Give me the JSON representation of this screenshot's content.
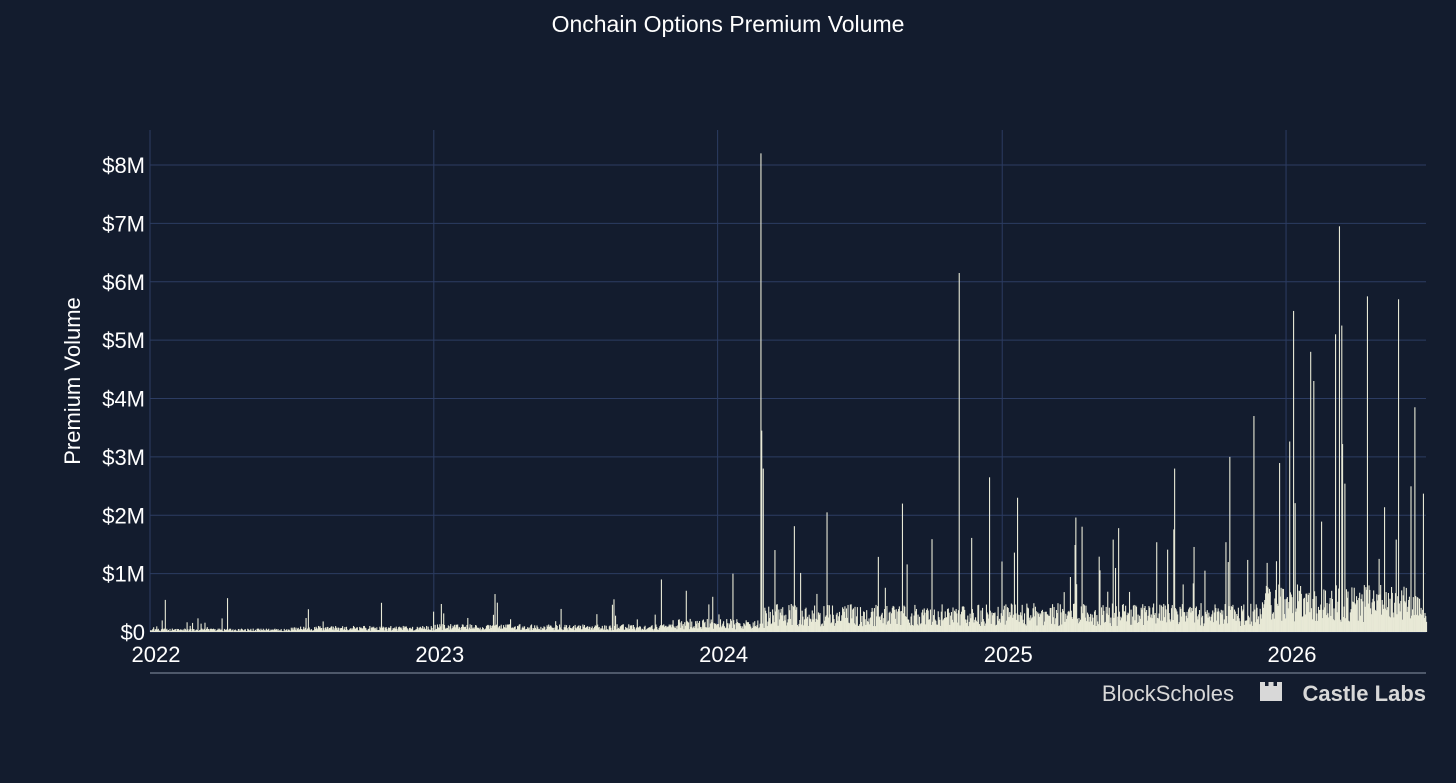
{
  "chart_data": {
    "type": "bar",
    "title": "Onchain Options Premium Volume",
    "xlabel": "",
    "ylabel": "Premium Volume",
    "y_ticks": [
      "$0",
      "$1M",
      "$2M",
      "$3M",
      "$4M",
      "$5M",
      "$6M",
      "$7M",
      "$8M"
    ],
    "x_ticks": [
      "2022",
      "2023",
      "2024",
      "2025",
      "2026"
    ],
    "xlim": [
      "2022-01-01",
      "2026-06-30"
    ],
    "ylim": [
      0,
      8600000
    ],
    "grid": true,
    "colors": {
      "background": "#131c2e",
      "bar": "#e8e9d6",
      "grid": "#2c3c62",
      "axis_line": "#8a93a6"
    },
    "notable_peaks": [
      {
        "date": "2022-01-20",
        "value": 550000
      },
      {
        "date": "2022-04-10",
        "value": 580000
      },
      {
        "date": "2022-10-25",
        "value": 500000
      },
      {
        "date": "2023-01-10",
        "value": 480000
      },
      {
        "date": "2023-03-20",
        "value": 650000
      },
      {
        "date": "2023-08-20",
        "value": 560000
      },
      {
        "date": "2023-10-20",
        "value": 900000
      },
      {
        "date": "2024-01-20",
        "value": 1000000
      },
      {
        "date": "2024-02-25",
        "value": 8200000
      },
      {
        "date": "2024-02-26",
        "value": 3450000
      },
      {
        "date": "2024-02-28",
        "value": 2800000
      },
      {
        "date": "2024-05-20",
        "value": 2050000
      },
      {
        "date": "2024-08-25",
        "value": 2200000
      },
      {
        "date": "2024-11-06",
        "value": 6150000
      },
      {
        "date": "2024-12-15",
        "value": 2650000
      },
      {
        "date": "2025-01-20",
        "value": 2300000
      },
      {
        "date": "2025-08-10",
        "value": 2800000
      },
      {
        "date": "2025-10-20",
        "value": 3000000
      },
      {
        "date": "2025-11-20",
        "value": 3700000
      },
      {
        "date": "2026-01-10",
        "value": 5500000
      },
      {
        "date": "2026-02-01",
        "value": 4800000
      },
      {
        "date": "2026-02-05",
        "value": 4300000
      },
      {
        "date": "2026-03-05",
        "value": 5100000
      },
      {
        "date": "2026-03-10",
        "value": 6950000
      },
      {
        "date": "2026-03-13",
        "value": 5250000
      },
      {
        "date": "2026-04-15",
        "value": 5750000
      },
      {
        "date": "2026-05-25",
        "value": 5700000
      },
      {
        "date": "2026-06-15",
        "value": 3850000
      }
    ]
  },
  "branding": {
    "left": "BlockScholes",
    "right": "Castle Labs"
  }
}
